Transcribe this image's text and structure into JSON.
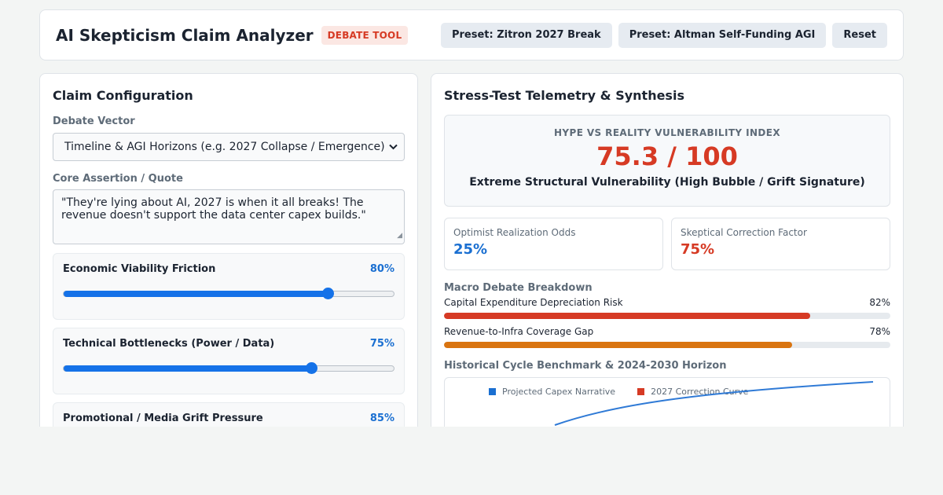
{
  "header": {
    "title": "AI Skepticism Claim Analyzer",
    "badge": "DEBATE TOOL",
    "buttons": [
      "Preset: Zitron 2027 Break",
      "Preset: Altman Self-Funding AGI",
      "Reset"
    ]
  },
  "left": {
    "title": "Claim Configuration",
    "vector_label": "Debate Vector",
    "vector_value": "Timeline & AGI Horizons (e.g. 2027 Collapse / Emergence)",
    "assertion_label": "Core Assertion / Quote",
    "assertion_text": "\"They're lying about AI, 2027 is when it all breaks! The revenue doesn't support the data center capex builds.\"",
    "sliders": [
      {
        "label": "Economic Viability Friction",
        "value": 80,
        "display": "80%"
      },
      {
        "label": "Technical Bottlenecks (Power / Data)",
        "value": 75,
        "display": "75%"
      },
      {
        "label": "Promotional / Media Grift Pressure",
        "value": 85,
        "display": "85%"
      }
    ]
  },
  "right": {
    "title": "Stress-Test Telemetry & Synthesis",
    "index_label": "HYPE VS REALITY VULNERABILITY INDEX",
    "index_score": "75.3 / 100",
    "index_verdict": "Extreme Structural Vulnerability (High Bubble / Grift Signature)",
    "metrics": [
      {
        "label": "Optimist Realization Odds",
        "value": "25%",
        "color": "#1a6fd1"
      },
      {
        "label": "Skeptical Correction Factor",
        "value": "75%",
        "color": "#d63a24"
      }
    ],
    "breakdown_title": "Macro Debate Breakdown",
    "breakdown": [
      {
        "label": "Capital Expenditure Depreciation Risk",
        "value": 82,
        "display": "82%",
        "color": "#d63a24"
      },
      {
        "label": "Revenue-to-Infra Coverage Gap",
        "value": 78,
        "display": "78%",
        "color": "#d97410"
      }
    ],
    "chart_title": "Historical Cycle Benchmark & 2024-2030 Horizon",
    "legend": [
      {
        "label": "Projected Capex Narrative",
        "color": "#1a6fd1"
      },
      {
        "label": "2027 Correction Curve",
        "color": "#d63a24"
      }
    ]
  }
}
